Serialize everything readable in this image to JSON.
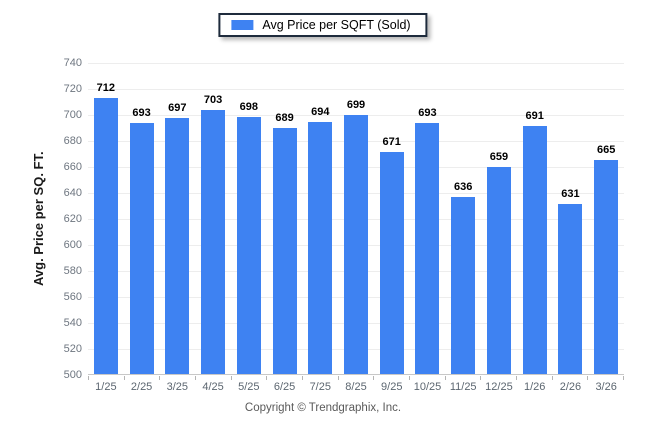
{
  "legend": {
    "label": "Avg Price per SQFT (Sold)",
    "swatch_color": "#3E82F2"
  },
  "footer": {
    "copyright": "Copyright © Trendgraphix, Inc."
  },
  "chart_data": {
    "type": "bar",
    "title": "",
    "series_name": "Avg Price per SQFT (Sold)",
    "categories": [
      "1/25",
      "2/25",
      "3/25",
      "4/25",
      "5/25",
      "6/25",
      "7/25",
      "8/25",
      "9/25",
      "10/25",
      "11/25",
      "12/25",
      "1/26",
      "2/26",
      "3/26"
    ],
    "values": [
      712,
      693,
      697,
      703,
      698,
      689,
      694,
      699,
      671,
      693,
      636,
      659,
      691,
      631,
      665
    ],
    "xlabel": "",
    "ylabel": "Avg. Price per SQ. FT.",
    "ylim": [
      500,
      740
    ],
    "yticks": [
      500,
      520,
      540,
      560,
      580,
      600,
      620,
      640,
      660,
      680,
      700,
      720,
      740
    ],
    "grid": "horizontal",
    "legend_position": "top-center",
    "bar_color": "#3E82F2",
    "value_labels": true
  }
}
